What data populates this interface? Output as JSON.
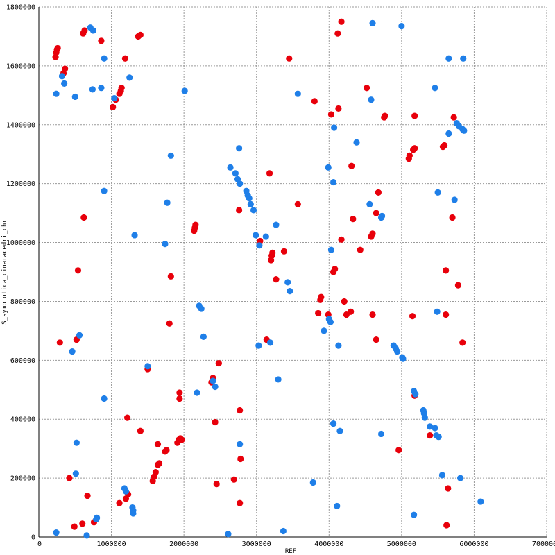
{
  "chart_data": {
    "type": "scatter",
    "title": "",
    "xlabel": "REF",
    "ylabel": "S_symbiotica_cinaracedri_chr",
    "xlim": [
      0,
      7000000
    ],
    "ylim": [
      0,
      1800000
    ],
    "x_ticks": [
      "0",
      "1000000",
      "2000000",
      "3000000",
      "4000000",
      "5000000",
      "6000000",
      "7000000"
    ],
    "y_ticks": [
      "0",
      "200000",
      "400000",
      "600000",
      "800000",
      "1000000",
      "1200000",
      "1400000",
      "1600000",
      "1800000"
    ],
    "grid": true,
    "legend": "none",
    "series": [
      {
        "color": "#e8000b",
        "points": [
          [
            230000,
            1630000
          ],
          [
            240000,
            1645000
          ],
          [
            250000,
            1655000
          ],
          [
            260000,
            1660000
          ],
          [
            340000,
            1575000
          ],
          [
            360000,
            1590000
          ],
          [
            610000,
            1710000
          ],
          [
            630000,
            1720000
          ],
          [
            860000,
            1685000
          ],
          [
            1020000,
            1460000
          ],
          [
            1060000,
            1485000
          ],
          [
            1110000,
            1505000
          ],
          [
            1130000,
            1515000
          ],
          [
            1140000,
            1525000
          ],
          [
            1190000,
            1625000
          ],
          [
            1370000,
            1700000
          ],
          [
            1400000,
            1705000
          ],
          [
            3450000,
            1625000
          ],
          [
            4120000,
            1710000
          ],
          [
            4170000,
            1750000
          ],
          [
            290000,
            660000
          ],
          [
            520000,
            670000
          ],
          [
            540000,
            905000
          ],
          [
            620000,
            1085000
          ],
          [
            670000,
            140000
          ],
          [
            420000,
            200000
          ],
          [
            490000,
            35000
          ],
          [
            600000,
            45000
          ],
          [
            760000,
            50000
          ],
          [
            1110000,
            115000
          ],
          [
            1200000,
            130000
          ],
          [
            1230000,
            145000
          ],
          [
            1220000,
            405000
          ],
          [
            1400000,
            360000
          ],
          [
            1500000,
            570000
          ],
          [
            1570000,
            190000
          ],
          [
            1590000,
            205000
          ],
          [
            1610000,
            220000
          ],
          [
            1640000,
            245000
          ],
          [
            1660000,
            250000
          ],
          [
            1640000,
            315000
          ],
          [
            1740000,
            290000
          ],
          [
            1760000,
            295000
          ],
          [
            1800000,
            725000
          ],
          [
            1820000,
            885000
          ],
          [
            1910000,
            320000
          ],
          [
            1930000,
            330000
          ],
          [
            1950000,
            335000
          ],
          [
            1970000,
            330000
          ],
          [
            1940000,
            470000
          ],
          [
            1940000,
            490000
          ],
          [
            2140000,
            1040000
          ],
          [
            2150000,
            1050000
          ],
          [
            2160000,
            1060000
          ],
          [
            2380000,
            525000
          ],
          [
            2400000,
            540000
          ],
          [
            2430000,
            390000
          ],
          [
            2450000,
            180000
          ],
          [
            2480000,
            590000
          ],
          [
            2690000,
            195000
          ],
          [
            2760000,
            1110000
          ],
          [
            2770000,
            430000
          ],
          [
            2780000,
            265000
          ],
          [
            2770000,
            115000
          ],
          [
            3050000,
            1005000
          ],
          [
            3140000,
            670000
          ],
          [
            3180000,
            1235000
          ],
          [
            3200000,
            940000
          ],
          [
            3210000,
            955000
          ],
          [
            3220000,
            965000
          ],
          [
            3270000,
            875000
          ],
          [
            3380000,
            970000
          ],
          [
            3570000,
            1130000
          ],
          [
            3800000,
            1480000
          ],
          [
            3850000,
            760000
          ],
          [
            3880000,
            805000
          ],
          [
            3890000,
            815000
          ],
          [
            3990000,
            755000
          ],
          [
            4030000,
            1435000
          ],
          [
            4060000,
            900000
          ],
          [
            4080000,
            910000
          ],
          [
            4130000,
            1455000
          ],
          [
            4170000,
            1010000
          ],
          [
            4210000,
            800000
          ],
          [
            4240000,
            755000
          ],
          [
            4300000,
            765000
          ],
          [
            4310000,
            1260000
          ],
          [
            4330000,
            1080000
          ],
          [
            4430000,
            975000
          ],
          [
            4520000,
            1525000
          ],
          [
            4580000,
            1020000
          ],
          [
            4600000,
            1030000
          ],
          [
            4600000,
            755000
          ],
          [
            4650000,
            670000
          ],
          [
            4650000,
            1100000
          ],
          [
            4680000,
            1170000
          ],
          [
            4760000,
            1425000
          ],
          [
            4770000,
            1430000
          ],
          [
            4960000,
            295000
          ],
          [
            5100000,
            1285000
          ],
          [
            5110000,
            1295000
          ],
          [
            5150000,
            750000
          ],
          [
            5160000,
            1315000
          ],
          [
            5180000,
            1320000
          ],
          [
            5180000,
            1430000
          ],
          [
            5180000,
            480000
          ],
          [
            5390000,
            345000
          ],
          [
            5570000,
            1325000
          ],
          [
            5590000,
            1330000
          ],
          [
            5610000,
            905000
          ],
          [
            5610000,
            755000
          ],
          [
            5640000,
            165000
          ],
          [
            5620000,
            40000
          ],
          [
            5700000,
            1085000
          ],
          [
            5720000,
            1425000
          ],
          [
            5780000,
            855000
          ],
          [
            5840000,
            660000
          ]
        ]
      },
      {
        "color": "#1f7fe8",
        "points": [
          [
            240000,
            1505000
          ],
          [
            320000,
            1565000
          ],
          [
            350000,
            1540000
          ],
          [
            500000,
            1495000
          ],
          [
            710000,
            1730000
          ],
          [
            750000,
            1720000
          ],
          [
            740000,
            1520000
          ],
          [
            860000,
            1525000
          ],
          [
            900000,
            1625000
          ],
          [
            1040000,
            1490000
          ],
          [
            1250000,
            1560000
          ],
          [
            900000,
            1175000
          ],
          [
            560000,
            685000
          ],
          [
            460000,
            630000
          ],
          [
            520000,
            320000
          ],
          [
            510000,
            215000
          ],
          [
            900000,
            470000
          ],
          [
            660000,
            5000
          ],
          [
            800000,
            65000
          ],
          [
            790000,
            60000
          ],
          [
            240000,
            15000
          ],
          [
            1180000,
            165000
          ],
          [
            1200000,
            155000
          ],
          [
            1290000,
            100000
          ],
          [
            1300000,
            90000
          ],
          [
            1300000,
            80000
          ],
          [
            1500000,
            580000
          ],
          [
            1320000,
            1025000
          ],
          [
            1740000,
            995000
          ],
          [
            1770000,
            1135000
          ],
          [
            1820000,
            1295000
          ],
          [
            2010000,
            1515000
          ],
          [
            2180000,
            490000
          ],
          [
            2210000,
            785000
          ],
          [
            2240000,
            775000
          ],
          [
            2270000,
            680000
          ],
          [
            2400000,
            530000
          ],
          [
            2430000,
            510000
          ],
          [
            2610000,
            10000
          ],
          [
            2640000,
            1255000
          ],
          [
            2710000,
            1235000
          ],
          [
            2740000,
            1215000
          ],
          [
            2770000,
            1200000
          ],
          [
            2760000,
            1320000
          ],
          [
            2770000,
            315000
          ],
          [
            2860000,
            1175000
          ],
          [
            2880000,
            1160000
          ],
          [
            2900000,
            1150000
          ],
          [
            2920000,
            1130000
          ],
          [
            2960000,
            1110000
          ],
          [
            2990000,
            1025000
          ],
          [
            3040000,
            990000
          ],
          [
            3030000,
            650000
          ],
          [
            3130000,
            1020000
          ],
          [
            3190000,
            660000
          ],
          [
            3270000,
            1060000
          ],
          [
            3300000,
            535000
          ],
          [
            3370000,
            20000
          ],
          [
            3430000,
            865000
          ],
          [
            3460000,
            835000
          ],
          [
            3570000,
            1505000
          ],
          [
            3780000,
            185000
          ],
          [
            3930000,
            700000
          ],
          [
            3990000,
            1255000
          ],
          [
            4000000,
            740000
          ],
          [
            4020000,
            730000
          ],
          [
            4030000,
            975000
          ],
          [
            4060000,
            1205000
          ],
          [
            4070000,
            1390000
          ],
          [
            4110000,
            105000
          ],
          [
            4130000,
            650000
          ],
          [
            4150000,
            360000
          ],
          [
            4060000,
            385000
          ],
          [
            4380000,
            1340000
          ],
          [
            4560000,
            1130000
          ],
          [
            4580000,
            1485000
          ],
          [
            4600000,
            1745000
          ],
          [
            4720000,
            1085000
          ],
          [
            4730000,
            1090000
          ],
          [
            4720000,
            350000
          ],
          [
            4890000,
            650000
          ],
          [
            4920000,
            640000
          ],
          [
            4940000,
            630000
          ],
          [
            5000000,
            1735000
          ],
          [
            5010000,
            610000
          ],
          [
            5020000,
            605000
          ],
          [
            5170000,
            495000
          ],
          [
            5190000,
            485000
          ],
          [
            5170000,
            75000
          ],
          [
            5300000,
            430000
          ],
          [
            5310000,
            420000
          ],
          [
            5320000,
            405000
          ],
          [
            5390000,
            375000
          ],
          [
            5460000,
            370000
          ],
          [
            5480000,
            345000
          ],
          [
            5510000,
            340000
          ],
          [
            5460000,
            1525000
          ],
          [
            5500000,
            1170000
          ],
          [
            5490000,
            765000
          ],
          [
            5560000,
            210000
          ],
          [
            5650000,
            1625000
          ],
          [
            5650000,
            1370000
          ],
          [
            5730000,
            1145000
          ],
          [
            5760000,
            1405000
          ],
          [
            5790000,
            1395000
          ],
          [
            5810000,
            200000
          ],
          [
            5840000,
            1385000
          ],
          [
            5850000,
            1625000
          ],
          [
            5860000,
            1380000
          ],
          [
            6090000,
            120000
          ]
        ]
      }
    ]
  }
}
